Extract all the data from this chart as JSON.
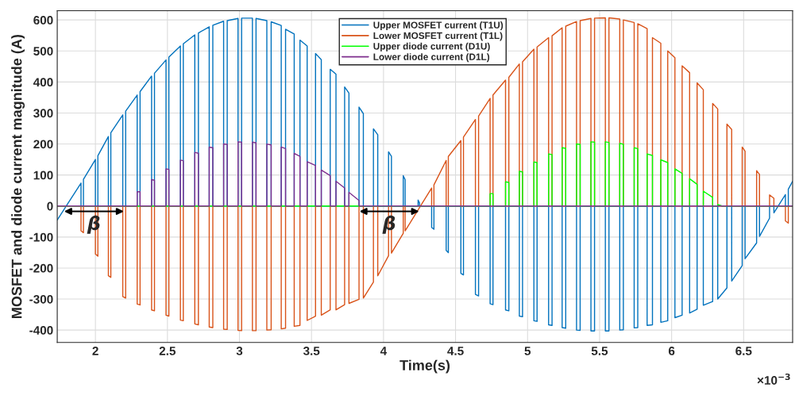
{
  "chart_data": {
    "type": "line",
    "xlabel": "Time(s)",
    "ylabel": "MOSFET and diode current magnitude (A)",
    "xlim": [
      1.735,
      6.84
    ],
    "ylim": [
      -440,
      630
    ],
    "xticks": [
      2,
      2.5,
      3,
      3.5,
      4,
      4.5,
      5,
      5.5,
      6,
      6.5
    ],
    "yticks": [
      -400,
      -300,
      -200,
      -100,
      0,
      100,
      200,
      300,
      400,
      500,
      600
    ],
    "grid": true,
    "legend": "top",
    "annotations": [
      {
        "text": "β",
        "x": 1.99,
        "y": -60
      },
      {
        "text": "β",
        "x": 4.04,
        "y": -60
      },
      "×10$^{−3}$"
    ],
    "series": [
      {
        "name": "Upper MOSFET current (T1U)",
        "color": "#0072bd",
        "x": [
          1.735,
          1.9,
          1.9,
          1.917,
          1.917,
          2.0,
          2.0,
          2.017,
          2.017,
          2.09,
          2.09,
          2.107,
          2.107,
          2.19,
          2.19,
          2.21,
          2.21,
          2.29,
          2.29,
          2.31,
          2.31,
          2.39,
          2.39,
          2.41,
          2.41,
          2.49,
          2.49,
          2.51,
          2.51,
          2.59,
          2.59,
          2.61,
          2.61,
          2.69,
          2.69,
          2.715,
          2.715,
          2.79,
          2.79,
          2.815,
          2.815,
          2.89,
          2.89,
          2.915,
          2.915,
          2.99,
          2.99,
          3.015,
          3.015,
          3.09,
          3.09,
          3.115,
          3.115,
          3.19,
          3.19,
          3.22,
          3.22,
          3.29,
          3.29,
          3.32,
          3.32,
          3.38,
          3.38,
          3.42,
          3.42,
          3.47,
          3.47,
          3.528,
          3.528,
          3.568,
          3.568,
          3.63,
          3.63,
          3.67,
          3.67,
          3.73,
          3.73,
          3.76,
          3.76,
          3.83,
          3.83,
          3.86,
          3.86,
          3.93,
          3.93,
          3.96,
          3.96,
          4.035,
          4.035,
          4.055,
          4.055,
          4.137,
          4.137,
          4.15,
          4.15,
          4.24,
          4.24,
          4.25,
          4.25,
          4.334,
          4.334,
          4.35,
          4.35,
          4.435,
          4.435,
          4.45,
          4.45,
          4.537,
          4.537,
          4.555,
          4.555,
          4.638,
          4.638,
          4.66,
          4.66,
          4.74,
          4.74,
          4.76,
          4.76,
          4.847,
          4.847,
          4.87,
          4.87,
          4.943,
          4.943,
          4.965,
          4.965,
          5.044,
          5.044,
          5.066,
          5.066,
          5.146,
          5.146,
          5.17,
          5.17,
          5.24,
          5.24,
          5.265,
          5.265,
          5.34,
          5.34,
          5.365,
          5.365,
          5.44,
          5.44,
          5.465,
          5.465,
          5.54,
          5.54,
          5.565,
          5.565,
          5.64,
          5.64,
          5.665,
          5.665,
          5.74,
          5.74,
          5.765,
          5.765,
          5.83,
          5.83,
          5.867,
          5.867,
          5.925,
          5.925,
          5.973,
          5.973,
          6.023,
          6.023,
          6.073,
          6.073,
          6.125,
          6.125,
          6.177,
          6.177,
          6.22,
          6.22,
          6.285,
          6.285,
          6.32,
          6.32,
          6.384,
          6.384,
          6.417,
          6.417,
          6.49,
          6.49,
          6.51,
          6.51,
          6.59,
          6.59,
          6.61,
          6.61,
          6.68,
          6.68,
          6.71,
          6.71,
          6.79,
          6.79,
          6.81,
          6.81,
          6.84
        ],
        "values": [
          -45,
          74,
          0,
          0,
          86,
          150,
          0,
          0,
          162,
          224,
          0,
          0,
          236,
          294,
          0,
          0,
          306,
          358,
          0,
          0,
          369,
          419,
          0,
          0,
          428,
          471,
          0,
          0,
          480,
          516,
          0,
          0,
          523,
          552,
          0,
          0,
          558,
          578,
          0,
          0,
          583,
          596,
          0,
          0,
          598,
          605,
          0,
          0,
          606,
          606,
          0,
          0,
          605,
          598,
          0,
          0,
          594,
          582,
          0,
          0,
          570,
          555,
          0,
          0,
          535,
          516,
          0,
          0,
          492,
          472,
          0,
          0,
          441,
          425,
          0,
          0,
          384,
          364,
          0,
          0,
          319,
          298,
          0,
          0,
          249,
          230,
          0,
          0,
          175,
          160,
          0,
          0,
          98,
          85,
          0,
          0,
          19,
          10,
          0,
          0,
          -69,
          -75,
          0,
          0,
          -143,
          -150,
          0,
          0,
          -217,
          -222,
          0,
          0,
          -285,
          -290,
          0,
          0,
          -315,
          -318,
          0,
          0,
          -335,
          -338,
          0,
          0,
          -355,
          -357,
          0,
          0,
          -370,
          -372,
          0,
          0,
          -383,
          -385,
          0,
          0,
          -392,
          -394,
          0,
          0,
          -400,
          -401,
          0,
          0,
          -403,
          -403,
          0,
          0,
          -403,
          -403,
          0,
          0,
          -400,
          -399,
          0,
          0,
          -393,
          -392,
          0,
          0,
          -385,
          -383,
          0,
          0,
          -375,
          -370,
          0,
          0,
          -360,
          -352,
          0,
          0,
          -345,
          -333,
          0,
          0,
          -320,
          -308,
          0,
          0,
          -300,
          -264,
          0,
          0,
          -242,
          -192,
          0,
          0,
          -170,
          -119,
          0,
          0,
          -98,
          -39,
          0,
          0,
          -22,
          37,
          0,
          0,
          54,
          80
        ]
      },
      {
        "name": "Lower MOSFET current (T1L)",
        "color": "#d95319",
        "x": [
          1.735,
          1.9,
          1.9,
          1.917,
          1.917,
          2.0,
          2.0,
          2.017,
          2.017,
          2.09,
          2.09,
          2.107,
          2.107,
          2.19,
          2.19,
          2.21,
          2.21,
          2.29,
          2.29,
          2.31,
          2.31,
          2.39,
          2.39,
          2.41,
          2.41,
          2.49,
          2.49,
          2.51,
          2.51,
          2.59,
          2.59,
          2.61,
          2.61,
          2.69,
          2.69,
          2.715,
          2.715,
          2.79,
          2.79,
          2.815,
          2.815,
          2.89,
          2.89,
          2.915,
          2.915,
          2.99,
          2.99,
          3.015,
          3.015,
          3.09,
          3.09,
          3.115,
          3.115,
          3.19,
          3.19,
          3.22,
          3.22,
          3.29,
          3.29,
          3.32,
          3.32,
          3.38,
          3.38,
          3.42,
          3.42,
          3.47,
          3.47,
          3.528,
          3.528,
          3.568,
          3.568,
          3.63,
          3.63,
          3.67,
          3.67,
          3.73,
          3.73,
          3.76,
          3.76,
          3.83,
          3.83,
          3.86,
          3.86,
          3.93,
          3.93,
          3.96,
          3.96,
          4.035,
          4.035,
          4.055,
          4.055,
          4.137,
          4.137,
          4.15,
          4.15,
          4.334,
          4.334,
          4.35,
          4.35,
          4.435,
          4.435,
          4.45,
          4.45,
          4.537,
          4.537,
          4.555,
          4.555,
          4.638,
          4.638,
          4.66,
          4.66,
          4.74,
          4.74,
          4.76,
          4.76,
          4.847,
          4.847,
          4.87,
          4.87,
          4.943,
          4.943,
          4.965,
          4.965,
          5.044,
          5.044,
          5.066,
          5.066,
          5.146,
          5.146,
          5.17,
          5.17,
          5.24,
          5.24,
          5.265,
          5.265,
          5.34,
          5.34,
          5.365,
          5.365,
          5.44,
          5.44,
          5.465,
          5.465,
          5.54,
          5.54,
          5.565,
          5.565,
          5.64,
          5.64,
          5.665,
          5.665,
          5.74,
          5.74,
          5.765,
          5.765,
          5.83,
          5.83,
          5.867,
          5.867,
          5.925,
          5.925,
          5.973,
          5.973,
          6.023,
          6.023,
          6.073,
          6.073,
          6.125,
          6.125,
          6.177,
          6.177,
          6.22,
          6.22,
          6.285,
          6.285,
          6.32,
          6.32,
          6.384,
          6.384,
          6.417,
          6.417,
          6.49,
          6.49,
          6.51,
          6.51,
          6.59,
          6.59,
          6.61,
          6.61,
          6.68,
          6.68,
          6.71,
          6.71,
          6.79,
          6.79,
          6.81,
          6.81,
          6.84
        ],
        "values": [
          0,
          0,
          -80,
          -86,
          0,
          0,
          -155,
          -162,
          0,
          0,
          -225,
          -230,
          0,
          0,
          -292,
          -297,
          0,
          0,
          -316,
          -319,
          0,
          0,
          -335,
          -338,
          0,
          0,
          -352,
          -355,
          0,
          0,
          -368,
          -370,
          0,
          0,
          -380,
          -383,
          0,
          0,
          -390,
          -392,
          0,
          0,
          -397,
          -398,
          0,
          0,
          -401,
          -402,
          0,
          0,
          -402,
          -402,
          0,
          0,
          -400,
          -399,
          0,
          0,
          -396,
          -394,
          0,
          0,
          -388,
          -385,
          0,
          0,
          -369,
          -355,
          0,
          0,
          -352,
          -335,
          0,
          0,
          -335,
          -318,
          0,
          0,
          -314,
          -301,
          0,
          0,
          -297,
          -245,
          0,
          0,
          -225,
          -160,
          0,
          0,
          -152,
          -88,
          0,
          0,
          -80,
          58,
          0,
          0,
          68,
          147,
          0,
          0,
          160,
          211,
          0,
          0,
          222,
          279,
          0,
          0,
          290,
          347,
          0,
          0,
          358,
          406,
          0,
          0,
          415,
          458,
          0,
          0,
          465,
          506,
          0,
          0,
          513,
          543,
          0,
          0,
          549,
          575,
          0,
          0,
          580,
          595,
          0,
          0,
          598,
          605,
          0,
          0,
          606,
          607,
          0,
          0,
          607,
          603,
          0,
          0,
          600,
          592,
          0,
          0,
          588,
          572,
          0,
          0,
          543,
          525,
          0,
          0,
          500,
          478,
          0,
          0,
          452,
          430,
          0,
          0,
          397,
          375,
          0,
          0,
          331,
          313,
          0,
          0,
          264,
          247,
          0,
          0,
          190,
          177,
          0,
          0,
          114,
          102,
          0,
          0,
          36,
          25,
          0,
          0,
          -48,
          -55,
          0,
          0
        ]
      },
      {
        "name": "Upper diode current (D1U)",
        "color": "#00ff00",
        "x": [
          1.735,
          4.74,
          4.74,
          4.76,
          4.76,
          4.847,
          4.847,
          4.87,
          4.87,
          4.943,
          4.943,
          4.965,
          4.965,
          5.044,
          5.044,
          5.066,
          5.066,
          5.146,
          5.146,
          5.17,
          5.17,
          5.24,
          5.24,
          5.265,
          5.265,
          5.34,
          5.34,
          5.365,
          5.365,
          5.44,
          5.44,
          5.465,
          5.465,
          5.54,
          5.54,
          5.565,
          5.565,
          5.64,
          5.64,
          5.665,
          5.665,
          5.74,
          5.74,
          5.765,
          5.765,
          5.83,
          5.83,
          5.867,
          5.867,
          5.925,
          5.925,
          5.973,
          5.973,
          6.023,
          6.023,
          6.073,
          6.073,
          6.125,
          6.125,
          6.177,
          6.177,
          6.22,
          6.22,
          6.285,
          6.285,
          6.32,
          6.32,
          6.35,
          6.84
        ],
        "values": [
          0,
          0,
          40,
          40,
          0,
          0,
          78,
          76,
          0,
          0,
          112,
          110,
          0,
          0,
          142,
          140,
          0,
          0,
          168,
          166,
          0,
          0,
          188,
          186,
          0,
          0,
          200,
          199,
          0,
          0,
          207,
          206,
          0,
          0,
          207,
          205,
          0,
          0,
          202,
          199,
          0,
          0,
          188,
          185,
          0,
          0,
          168,
          163,
          0,
          0,
          149,
          140,
          0,
          0,
          120,
          105,
          0,
          0,
          88,
          70,
          0,
          0,
          48,
          28,
          0,
          0,
          5,
          0,
          0
        ]
      },
      {
        "name": "Lower diode current (D1L)",
        "color": "#7e2f8e",
        "x": [
          1.735,
          2.29,
          2.29,
          2.31,
          2.31,
          2.39,
          2.39,
          2.41,
          2.41,
          2.49,
          2.49,
          2.51,
          2.51,
          2.59,
          2.59,
          2.61,
          2.61,
          2.69,
          2.69,
          2.715,
          2.715,
          2.79,
          2.79,
          2.815,
          2.815,
          2.89,
          2.89,
          2.915,
          2.915,
          2.99,
          2.99,
          3.015,
          3.015,
          3.09,
          3.09,
          3.115,
          3.115,
          3.19,
          3.19,
          3.22,
          3.22,
          3.29,
          3.29,
          3.32,
          3.32,
          3.38,
          3.38,
          3.42,
          3.42,
          3.47,
          3.47,
          3.528,
          3.528,
          3.568,
          3.568,
          3.63,
          3.63,
          3.67,
          3.67,
          3.73,
          3.73,
          3.76,
          3.76,
          3.83,
          3.83,
          6.84
        ],
        "values": [
          0,
          0,
          46,
          46,
          0,
          0,
          85,
          83,
          0,
          0,
          120,
          118,
          0,
          0,
          148,
          146,
          0,
          0,
          173,
          170,
          0,
          0,
          190,
          188,
          0,
          0,
          200,
          199,
          0,
          0,
          207,
          206,
          0,
          0,
          206,
          204,
          0,
          0,
          200,
          197,
          0,
          0,
          190,
          185,
          0,
          0,
          170,
          160,
          0,
          0,
          143,
          131,
          0,
          0,
          116,
          98,
          0,
          0,
          80,
          58,
          0,
          0,
          44,
          18,
          0,
          0
        ]
      }
    ]
  }
}
